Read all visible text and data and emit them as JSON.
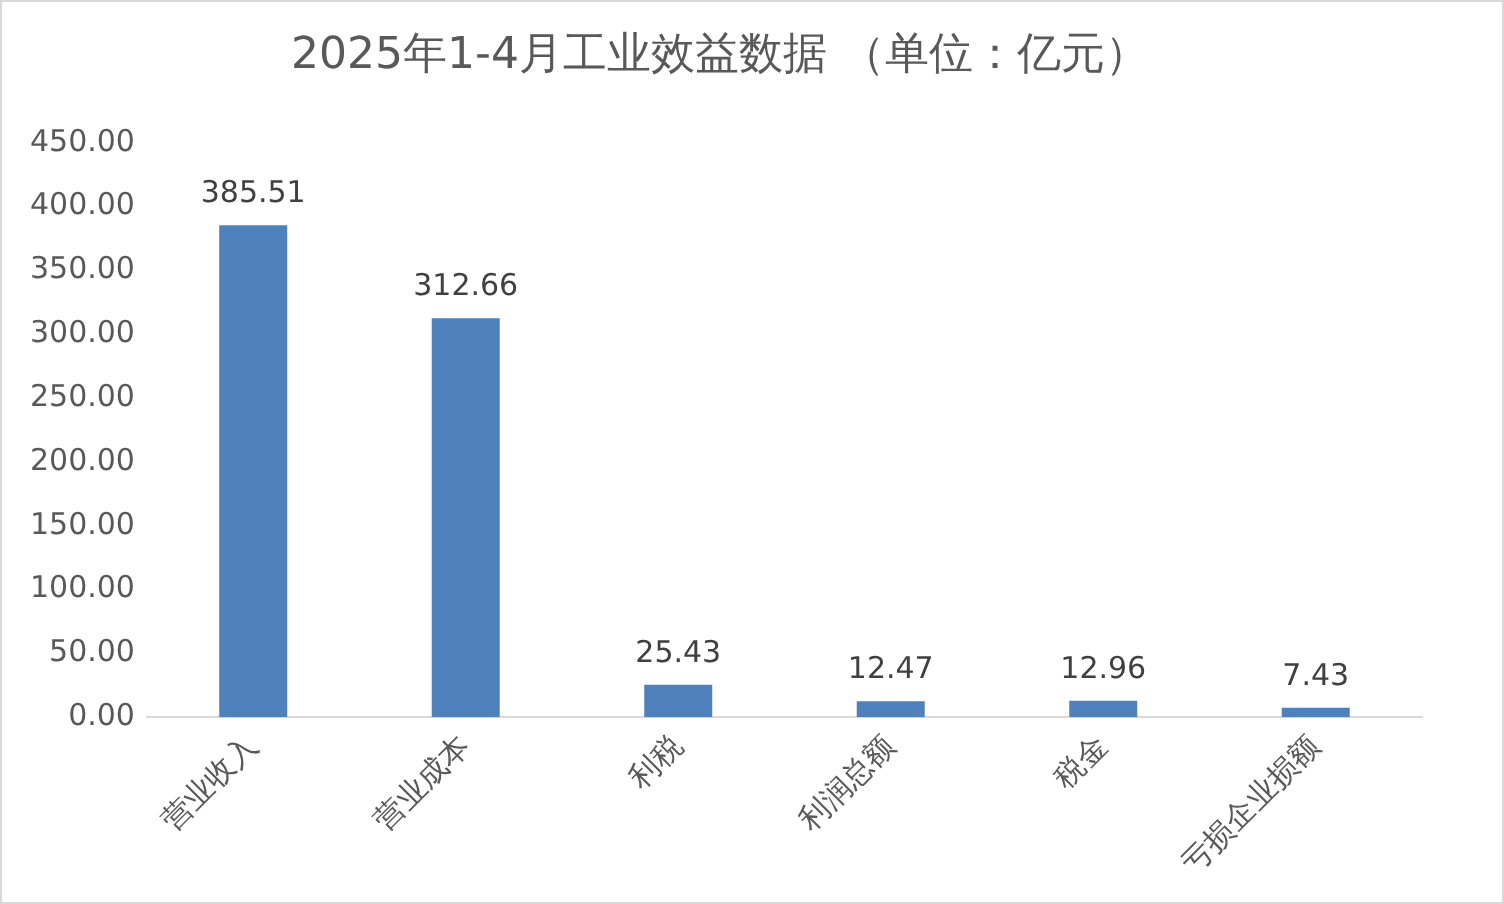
{
  "chart_data": {
    "type": "bar",
    "title": "2025年1-4月工业效益数据 （单位：亿元）",
    "categories": [
      "营业收入",
      "营业成本",
      "利税",
      "利润总额",
      "税金",
      "亏损企业损额"
    ],
    "values": [
      385.51,
      312.66,
      25.43,
      12.47,
      12.96,
      7.43
    ],
    "color": "#4f81bd",
    "ylim": [
      0,
      450
    ],
    "yticks": [
      {
        "value": 0,
        "label": "0.00"
      },
      {
        "value": 50,
        "label": "50.00"
      },
      {
        "value": 100,
        "label": "100.00"
      },
      {
        "value": 150,
        "label": "150.00"
      },
      {
        "value": 200,
        "label": "200.00"
      },
      {
        "value": 250,
        "label": "250.00"
      },
      {
        "value": 300,
        "label": "300.00"
      },
      {
        "value": 350,
        "label": "350.00"
      },
      {
        "value": 400,
        "label": "400.00"
      },
      {
        "value": 450,
        "label": "450.00"
      }
    ],
    "grid": false,
    "legend": false,
    "data_labels": true
  }
}
